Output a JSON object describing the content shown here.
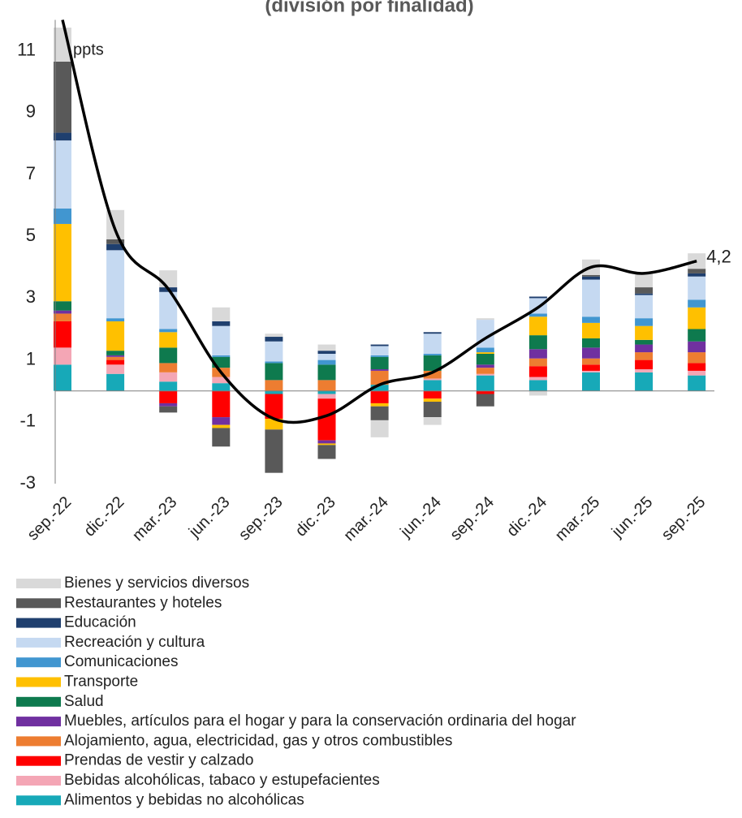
{
  "chart_data": {
    "type": "bar",
    "stacked": true,
    "title": "(división por finalidad)",
    "annotation": "ppts",
    "categories": [
      "sep.-22",
      "dic.-22",
      "mar.-23",
      "jun.-23",
      "sep.-23",
      "dic.-23",
      "mar.-24",
      "jun.-24",
      "sep.-24",
      "dic.-24",
      "mar.-25",
      "jun.-25",
      "sep.-25"
    ],
    "ylim": [
      -3,
      12
    ],
    "yticks": [
      -3,
      -1,
      1,
      3,
      5,
      7,
      9,
      11
    ],
    "series": [
      {
        "name": "Bienes y servicios diversos",
        "color": "#d9d9d9",
        "values": [
          1.1,
          0.95,
          0.55,
          0.45,
          0.1,
          0.2,
          -0.55,
          -0.25,
          0.05,
          -0.15,
          0.5,
          0.5,
          0.5
        ]
      },
      {
        "name": "Restaurantes y hoteles",
        "color": "#595959",
        "values": [
          2.3,
          0.15,
          -0.2,
          -0.6,
          -1.4,
          -0.45,
          -0.45,
          -0.5,
          -0.4,
          0,
          0.05,
          0.2,
          0.15
        ]
      },
      {
        "name": "Educación",
        "color": "#1f3f6e",
        "values": [
          0.25,
          0.2,
          0.15,
          0.15,
          0.15,
          0.1,
          0.05,
          0.05,
          0,
          0.05,
          0.1,
          0.05,
          0.1
        ]
      },
      {
        "name": "Recreación y cultura",
        "color": "#c5d9f1",
        "values": [
          2.2,
          2.2,
          1.2,
          0.95,
          0.65,
          0.2,
          0.3,
          0.65,
          0.9,
          0.5,
          1.2,
          0.75,
          0.75
        ]
      },
      {
        "name": "Comunicaciones",
        "color": "#4196d0",
        "values": [
          0.5,
          0.1,
          0.1,
          0.05,
          0.05,
          0.15,
          0.05,
          0.05,
          0.15,
          0.1,
          0.2,
          0.25,
          0.25
        ]
      },
      {
        "name": "Transporte",
        "color": "#ffc000",
        "values": [
          2.5,
          0.95,
          0.5,
          -0.1,
          -0.35,
          -0.05,
          -0.1,
          -0.1,
          0.05,
          0.6,
          0.5,
          0.45,
          0.7
        ]
      },
      {
        "name": "Salud",
        "color": "#0e7a4e",
        "values": [
          0.3,
          0.15,
          0.5,
          0.35,
          0.55,
          0.5,
          0.4,
          0.5,
          0.35,
          0.45,
          0.3,
          0.15,
          0.4
        ]
      },
      {
        "name": "Muebles, artículos para el hogar y para la conservación ordinaria del hogar",
        "color": "#7030a0",
        "values": [
          0.1,
          0.05,
          -0.1,
          -0.25,
          0,
          -0.1,
          0.05,
          0,
          0.1,
          0.3,
          0.35,
          0.25,
          0.35
        ]
      },
      {
        "name": "Alojamiento, agua, electricidad, gas y otros combustibles",
        "color": "#ed7d31",
        "values": [
          0.25,
          0.1,
          0.3,
          0.3,
          0.35,
          0.35,
          0.45,
          0.25,
          0.2,
          0.25,
          0.2,
          0.25,
          0.35
        ]
      },
      {
        "name": "Prendas de vestir y calzado",
        "color": "#ff0000",
        "values": [
          0.85,
          0.15,
          -0.4,
          -0.85,
          -0.8,
          -1.35,
          -0.4,
          -0.25,
          -0.1,
          0.35,
          0.2,
          0.3,
          0.25
        ]
      },
      {
        "name": "Bebidas alcohólicas, tabaco y estupefacientes",
        "color": "#f4a6b5",
        "values": [
          0.55,
          0.3,
          0.3,
          0.2,
          0,
          -0.15,
          0,
          0.05,
          0.05,
          0.1,
          0.05,
          0.1,
          0.15
        ]
      },
      {
        "name": "Alimentos y bebidas no alcohólicas",
        "color": "#17a9b8",
        "values": [
          0.85,
          0.55,
          0.3,
          0.25,
          -0.1,
          -0.1,
          0.2,
          0.35,
          0.5,
          0.35,
          0.6,
          0.6,
          0.5
        ]
      }
    ],
    "line": {
      "color": "#000000",
      "values": [
        12,
        5.2,
        3.3,
        0.6,
        -0.9,
        -0.8,
        0.2,
        0.6,
        1.7,
        2.7,
        4.0,
        3.8,
        4.2
      ],
      "value_labels": [
        null,
        null,
        null,
        null,
        null,
        null,
        null,
        null,
        null,
        null,
        null,
        null,
        "4,2"
      ]
    }
  }
}
